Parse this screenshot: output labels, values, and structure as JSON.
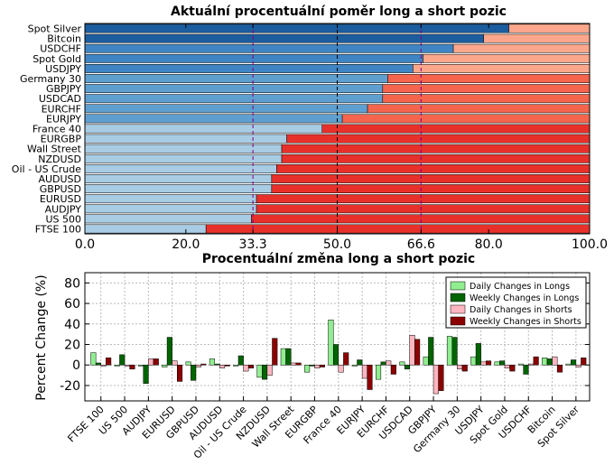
{
  "chart_data": [
    {
      "type": "bar",
      "orientation": "horizontal",
      "stacked": true,
      "title": "Aktuální procentuální poměr long a short pozic",
      "categories": [
        "Spot Silver",
        "Bitcoin",
        "USDCHF",
        "Spot Gold",
        "USDJPY",
        "Germany 30",
        "GBPJPY",
        "USDCAD",
        "EURCHF",
        "EURJPY",
        "France 40",
        "EURGBP",
        "Wall Street",
        "NZDUSD",
        "Oil - US Crude",
        "AUDUSD",
        "GBPUSD",
        "EURUSD",
        "AUDJPY",
        "US 500",
        "FTSE 100"
      ],
      "long_percent": [
        84,
        79,
        73,
        67,
        65,
        60,
        59,
        59,
        56,
        51,
        47,
        40,
        39,
        39,
        38,
        37,
        37,
        34,
        34,
        33,
        24
      ],
      "short_colors": [
        "#fca78c",
        "#fca78c",
        "#fca78c",
        "#fca78c",
        "#fca78c",
        "#f5644c",
        "#f5644c",
        "#f5644c",
        "#f5644c",
        "#f5644c",
        "#e8302b",
        "#e8302b",
        "#e8302b",
        "#e8302b",
        "#e8302b",
        "#e8302b",
        "#e8302b",
        "#e8302b",
        "#e8302b",
        "#e8302b",
        "#e8302b"
      ],
      "long_colors": [
        "#1c5d9f",
        "#1c5d9f",
        "#3f85c4",
        "#3f85c4",
        "#3f85c4",
        "#5e9fd0",
        "#5e9fd0",
        "#5e9fd0",
        "#5e9fd0",
        "#5e9fd0",
        "#a8cce4",
        "#a8cce4",
        "#a8cce4",
        "#a8cce4",
        "#a8cce4",
        "#a8cce4",
        "#a8cce4",
        "#a8cce4",
        "#a8cce4",
        "#a8cce4",
        "#a8cce4"
      ],
      "xlim": [
        0,
        100
      ],
      "xticks": [
        {
          "value": 0,
          "label": "0.0",
          "color": "#000000"
        },
        {
          "value": 20,
          "label": "20.0",
          "color": "#000000"
        },
        {
          "value": 33.3,
          "label": "33.3",
          "color": "#800080"
        },
        {
          "value": 50,
          "label": "50.0",
          "color": "#000000"
        },
        {
          "value": 66.6,
          "label": "66.6",
          "color": "#800080"
        },
        {
          "value": 80,
          "label": "80.0",
          "color": "#000000"
        },
        {
          "value": 100,
          "label": "100.0",
          "color": "#000000"
        }
      ],
      "reference_lines": [
        {
          "value": 33.3,
          "color": "#800080"
        },
        {
          "value": 50,
          "color": "#000000"
        },
        {
          "value": 66.6,
          "color": "#800080"
        }
      ]
    },
    {
      "type": "bar",
      "orientation": "vertical",
      "title": "Procentuální změna long a short pozic",
      "ylabel": "Percent Change (%)",
      "ylim": [
        -35,
        90
      ],
      "yticks": [
        -20,
        0,
        20,
        40,
        60,
        80
      ],
      "grid": true,
      "legend_position": "top-right",
      "categories": [
        "FTSE 100",
        "US 500",
        "AUDJPY",
        "EURUSD",
        "GBPUSD",
        "AUDUSD",
        "Oil - US Crude",
        "NZDUSD",
        "Wall Street",
        "EURGBP",
        "France 40",
        "EURJPY",
        "EURCHF",
        "USDCAD",
        "GBPJPY",
        "Germany 30",
        "USDJPY",
        "Spot Gold",
        "USDCHF",
        "Bitcoin",
        "Spot Silver"
      ],
      "series": [
        {
          "name": "Daily Changes in Longs",
          "color": "#90ee90",
          "values": [
            12,
            -1,
            -1,
            -2,
            3,
            6,
            -1,
            -12,
            16,
            -7,
            44,
            -1,
            -14,
            3,
            8,
            28,
            8,
            3,
            1,
            7,
            1
          ]
        },
        {
          "name": "Weekly Changes in Longs",
          "color": "#006400",
          "values": [
            2,
            10,
            -18,
            27,
            -15,
            1,
            9,
            -14,
            16,
            -1,
            20,
            5,
            3,
            -4,
            27,
            27,
            21,
            4,
            -9,
            6,
            5
          ]
        },
        {
          "name": "Daily Changes in Shorts",
          "color": "#ffb6c1",
          "values": [
            -1,
            -1,
            6,
            4,
            -2,
            -3,
            -6,
            -10,
            2,
            -3,
            -7,
            -13,
            4,
            29,
            -28,
            -4,
            3,
            -3,
            1,
            8,
            -2
          ]
        },
        {
          "name": "Weekly Changes in Shorts",
          "color": "#8b0000",
          "values": [
            7,
            -4,
            6,
            -16,
            1,
            -1,
            -3,
            26,
            2,
            -2,
            12,
            -24,
            -9,
            25,
            -25,
            -6,
            4,
            -6,
            8,
            -7,
            7
          ]
        }
      ]
    }
  ]
}
